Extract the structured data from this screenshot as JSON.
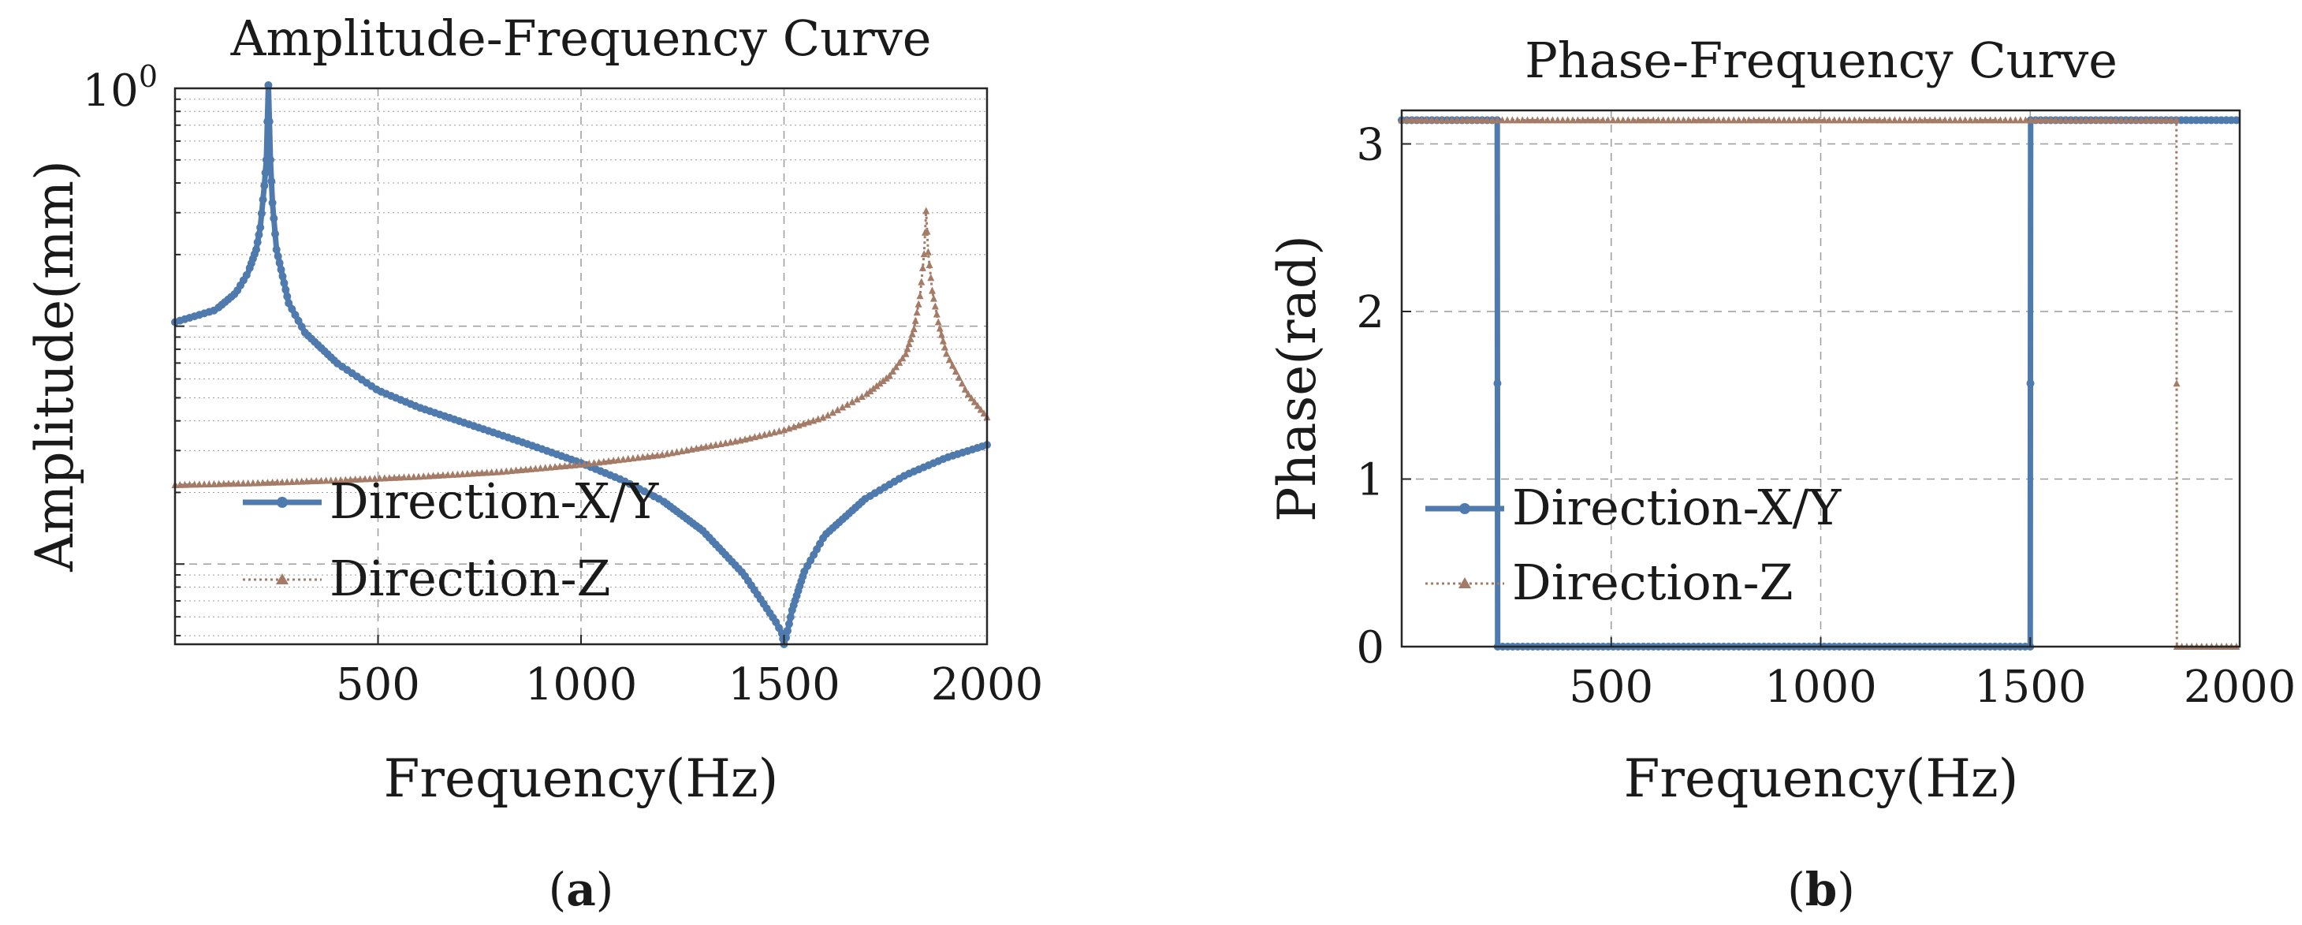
{
  "figure": {
    "panel_labels": [
      {
        "open": "(",
        "letter": "a",
        "close": ")"
      },
      {
        "open": "(",
        "letter": "b",
        "close": ")"
      }
    ]
  },
  "colors": {
    "series_xy": "#4F7AAD",
    "series_z": "#A47B66",
    "grid": "#9c9c9c",
    "axis": "#262626"
  },
  "chart_data": [
    {
      "type": "line",
      "title": "Amplitude-Frequency Curve",
      "xlabel": "Frequency(Hz)",
      "ylabel": "Amplitude(mm)",
      "x_scale": "linear",
      "y_scale": "log",
      "xlim": [
        0,
        2000
      ],
      "ylim": [
        0.0046,
        1.0
      ],
      "x_ticks": [
        500,
        1000,
        1500,
        2000
      ],
      "x_tick_labels": [
        "500",
        "1000",
        "1500",
        "2000"
      ],
      "y_ticks": [
        1.0
      ],
      "y_tick_labels": [
        {
          "base": "10",
          "exp": "0"
        }
      ],
      "grid": true,
      "legend": "center-left",
      "series": [
        {
          "name": "Direction-X/Y",
          "marker": "circle",
          "linestyle": "solid",
          "points": [
            [
              0,
              0.104
            ],
            [
              100,
              0.117
            ],
            [
              150,
              0.138
            ],
            [
              180,
              0.168
            ],
            [
              200,
              0.21
            ],
            [
              210,
              0.26
            ],
            [
              220,
              0.39
            ],
            [
              225,
              0.5
            ],
            [
              230,
              1.05
            ],
            [
              235,
              0.5
            ],
            [
              240,
              0.33
            ],
            [
              250,
              0.21
            ],
            [
              280,
              0.125
            ],
            [
              320,
              0.094
            ],
            [
              400,
              0.0697
            ],
            [
              500,
              0.0537
            ],
            [
              600,
              0.0456
            ],
            [
              700,
              0.0399
            ],
            [
              800,
              0.035
            ],
            [
              900,
              0.0306
            ],
            [
              1000,
              0.0266
            ],
            [
              1100,
              0.0226
            ],
            [
              1200,
              0.0185
            ],
            [
              1300,
              0.0138
            ],
            [
              1400,
              0.0091
            ],
            [
              1450,
              0.0068
            ],
            [
              1480,
              0.0057
            ],
            [
              1495,
              0.0051
            ],
            [
              1500,
              0.0046
            ],
            [
              1505,
              0.0049
            ],
            [
              1520,
              0.0064
            ],
            [
              1550,
              0.0093
            ],
            [
              1600,
              0.0132
            ],
            [
              1700,
              0.0188
            ],
            [
              1800,
              0.0237
            ],
            [
              1900,
              0.028
            ],
            [
              2000,
              0.0317
            ]
          ]
        },
        {
          "name": "Direction-Z",
          "marker": "triangle",
          "linestyle": "dotted",
          "points": [
            [
              0,
              0.0215
            ],
            [
              200,
              0.0219
            ],
            [
              400,
              0.0225
            ],
            [
              600,
              0.0233
            ],
            [
              800,
              0.0244
            ],
            [
              1000,
              0.0262
            ],
            [
              1200,
              0.0288
            ],
            [
              1400,
              0.0333
            ],
            [
              1500,
              0.0366
            ],
            [
              1600,
              0.0415
            ],
            [
              1700,
              0.0514
            ],
            [
              1760,
              0.0619
            ],
            [
              1800,
              0.0765
            ],
            [
              1820,
              0.0973
            ],
            [
              1835,
              0.134
            ],
            [
              1845,
              0.201
            ],
            [
              1850,
              0.305
            ],
            [
              1855,
              0.205
            ],
            [
              1865,
              0.141
            ],
            [
              1880,
              0.104
            ],
            [
              1900,
              0.0766
            ],
            [
              1950,
              0.0527
            ],
            [
              2000,
              0.0414
            ]
          ]
        }
      ]
    },
    {
      "type": "line",
      "title": "Phase-Frequency Curve",
      "xlabel": "Frequency(Hz)",
      "ylabel": "Phase(rad)",
      "x_scale": "linear",
      "y_scale": "linear",
      "xlim": [
        0,
        2000
      ],
      "ylim": [
        0,
        3.2
      ],
      "x_ticks": [
        500,
        1000,
        1500,
        2000
      ],
      "x_tick_labels": [
        "500",
        "1000",
        "1500",
        "2000"
      ],
      "y_ticks": [
        0,
        1,
        2,
        3
      ],
      "y_tick_labels": [
        "0",
        "1",
        "2",
        "3"
      ],
      "grid": true,
      "legend": "center-left",
      "series": [
        {
          "name": "Direction-X/Y",
          "marker": "circle",
          "linestyle": "solid",
          "points": [
            [
              0,
              3.1416
            ],
            [
              228,
              3.1416
            ],
            [
              229,
              0
            ],
            [
              1500,
              0
            ],
            [
              1501,
              3.1416
            ],
            [
              2000,
              3.1416
            ]
          ]
        },
        {
          "name": "Direction-Z",
          "marker": "triangle",
          "linestyle": "dotted",
          "points": [
            [
              0,
              3.1416
            ],
            [
              1849,
              3.1416
            ],
            [
              1850,
              0
            ],
            [
              2000,
              0
            ]
          ]
        }
      ]
    }
  ]
}
